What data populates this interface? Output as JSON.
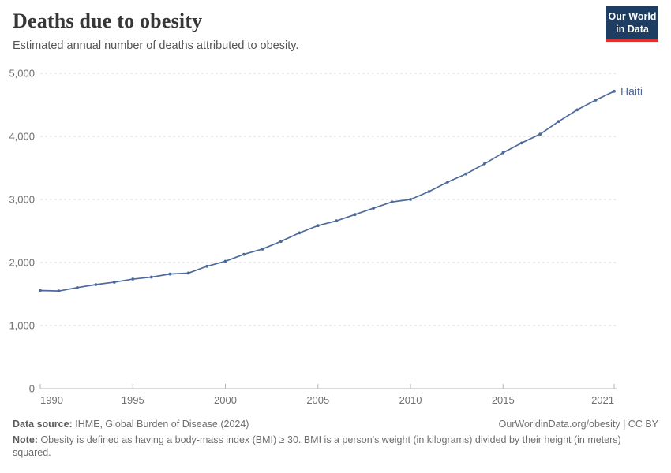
{
  "header": {
    "title": "Deaths due to obesity",
    "subtitle": "Estimated annual number of deaths attributed to obesity.",
    "logo": {
      "line1": "Our World",
      "line2": "in Data"
    }
  },
  "chart_data": {
    "type": "line",
    "title": "Deaths due to obesity",
    "subtitle": "Estimated annual number of deaths attributed to obesity.",
    "xlabel": "",
    "ylabel": "",
    "xlim": [
      1990,
      2021
    ],
    "ylim": [
      0,
      5000
    ],
    "grid": "horizontal-dashed",
    "legend_position": "end-of-line-label",
    "xticks": [
      1990,
      1995,
      2000,
      2005,
      2010,
      2015,
      2021
    ],
    "yticks": [
      0,
      1000,
      2000,
      3000,
      4000,
      5000
    ],
    "ytick_labels": [
      "0",
      "1,000",
      "2,000",
      "3,000",
      "4,000",
      "5,000"
    ],
    "x": [
      1990,
      1991,
      1992,
      1993,
      1994,
      1995,
      1996,
      1997,
      1998,
      1999,
      2000,
      2001,
      2002,
      2003,
      2004,
      2005,
      2006,
      2007,
      2008,
      2009,
      2010,
      2011,
      2012,
      2013,
      2014,
      2015,
      2016,
      2017,
      2018,
      2019,
      2020,
      2021
    ],
    "series": [
      {
        "name": "Haiti",
        "color": "#4c6a9c",
        "values": [
          1556,
          1548,
          1602,
          1650,
          1688,
          1737,
          1768,
          1817,
          1832,
          1940,
          2020,
          2130,
          2213,
          2335,
          2470,
          2585,
          2660,
          2760,
          2862,
          2960,
          3000,
          3125,
          3275,
          3405,
          3565,
          3740,
          3895,
          4035,
          4235,
          4420,
          4575,
          4715
        ]
      }
    ]
  },
  "footer": {
    "source_label": "Data source:",
    "source_value": "IHME, Global Burden of Disease (2024)",
    "rights": "OurWorldinData.org/obesity | CC BY",
    "note_label": "Note:",
    "note_value": "Obesity is defined as having a body-mass index (BMI) ≥ 30. BMI is a person's weight (in kilograms) divided by their height (in meters) squared."
  },
  "colors": {
    "accent_blue": "#4c6a9c",
    "logo_bg": "#1d3d63",
    "logo_accent": "#e0322b",
    "grid": "#dadada",
    "axis": "#b5b5b5",
    "tick_text": "#707070"
  }
}
